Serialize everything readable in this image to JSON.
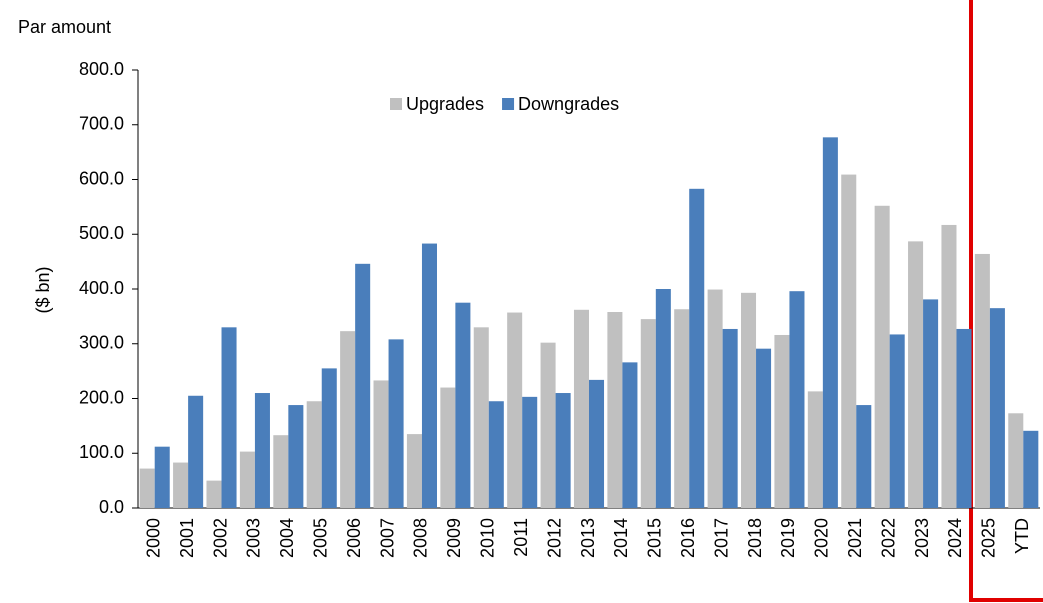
{
  "chart_data": {
    "type": "bar",
    "title": "Par amount",
    "y_label": "($ bn)",
    "categories": [
      "2000",
      "2001",
      "2002",
      "2003",
      "2004",
      "2005",
      "2006",
      "2007",
      "2008",
      "2009",
      "2010",
      "2011",
      "2012",
      "2013",
      "2014",
      "2015",
      "2016",
      "2017",
      "2018",
      "2019",
      "2020",
      "2021",
      "2022",
      "2023",
      "2024",
      "2025",
      "YTD"
    ],
    "series": [
      {
        "name": "Upgrades",
        "color": "#c0c0c0",
        "values": [
          72,
          83,
          50,
          103,
          133,
          195,
          323,
          233,
          135,
          220,
          330,
          357,
          302,
          362,
          358,
          345,
          363,
          399,
          393,
          316,
          213,
          609,
          552,
          487,
          517,
          464,
          173
        ]
      },
      {
        "name": "Downgrades",
        "color": "#4a7ebb",
        "values": [
          112,
          205,
          330,
          210,
          188,
          255,
          446,
          308,
          483,
          375,
          195,
          203,
          210,
          234,
          266,
          400,
          583,
          327,
          291,
          396,
          677,
          188,
          317,
          381,
          327,
          365,
          141
        ]
      }
    ],
    "ylim": [
      0,
      800
    ],
    "yticks": [
      {
        "value": 0,
        "label": "0.0"
      },
      {
        "value": 100,
        "label": "100.0"
      },
      {
        "value": 200,
        "label": "200.0"
      },
      {
        "value": 300,
        "label": "300.0"
      },
      {
        "value": 400,
        "label": "400.0"
      },
      {
        "value": 500,
        "label": "500.0"
      },
      {
        "value": 600,
        "label": "600.0"
      },
      {
        "value": 700,
        "label": "700.0"
      },
      {
        "value": 800,
        "label": "800.0"
      }
    ],
    "legend": "top"
  }
}
